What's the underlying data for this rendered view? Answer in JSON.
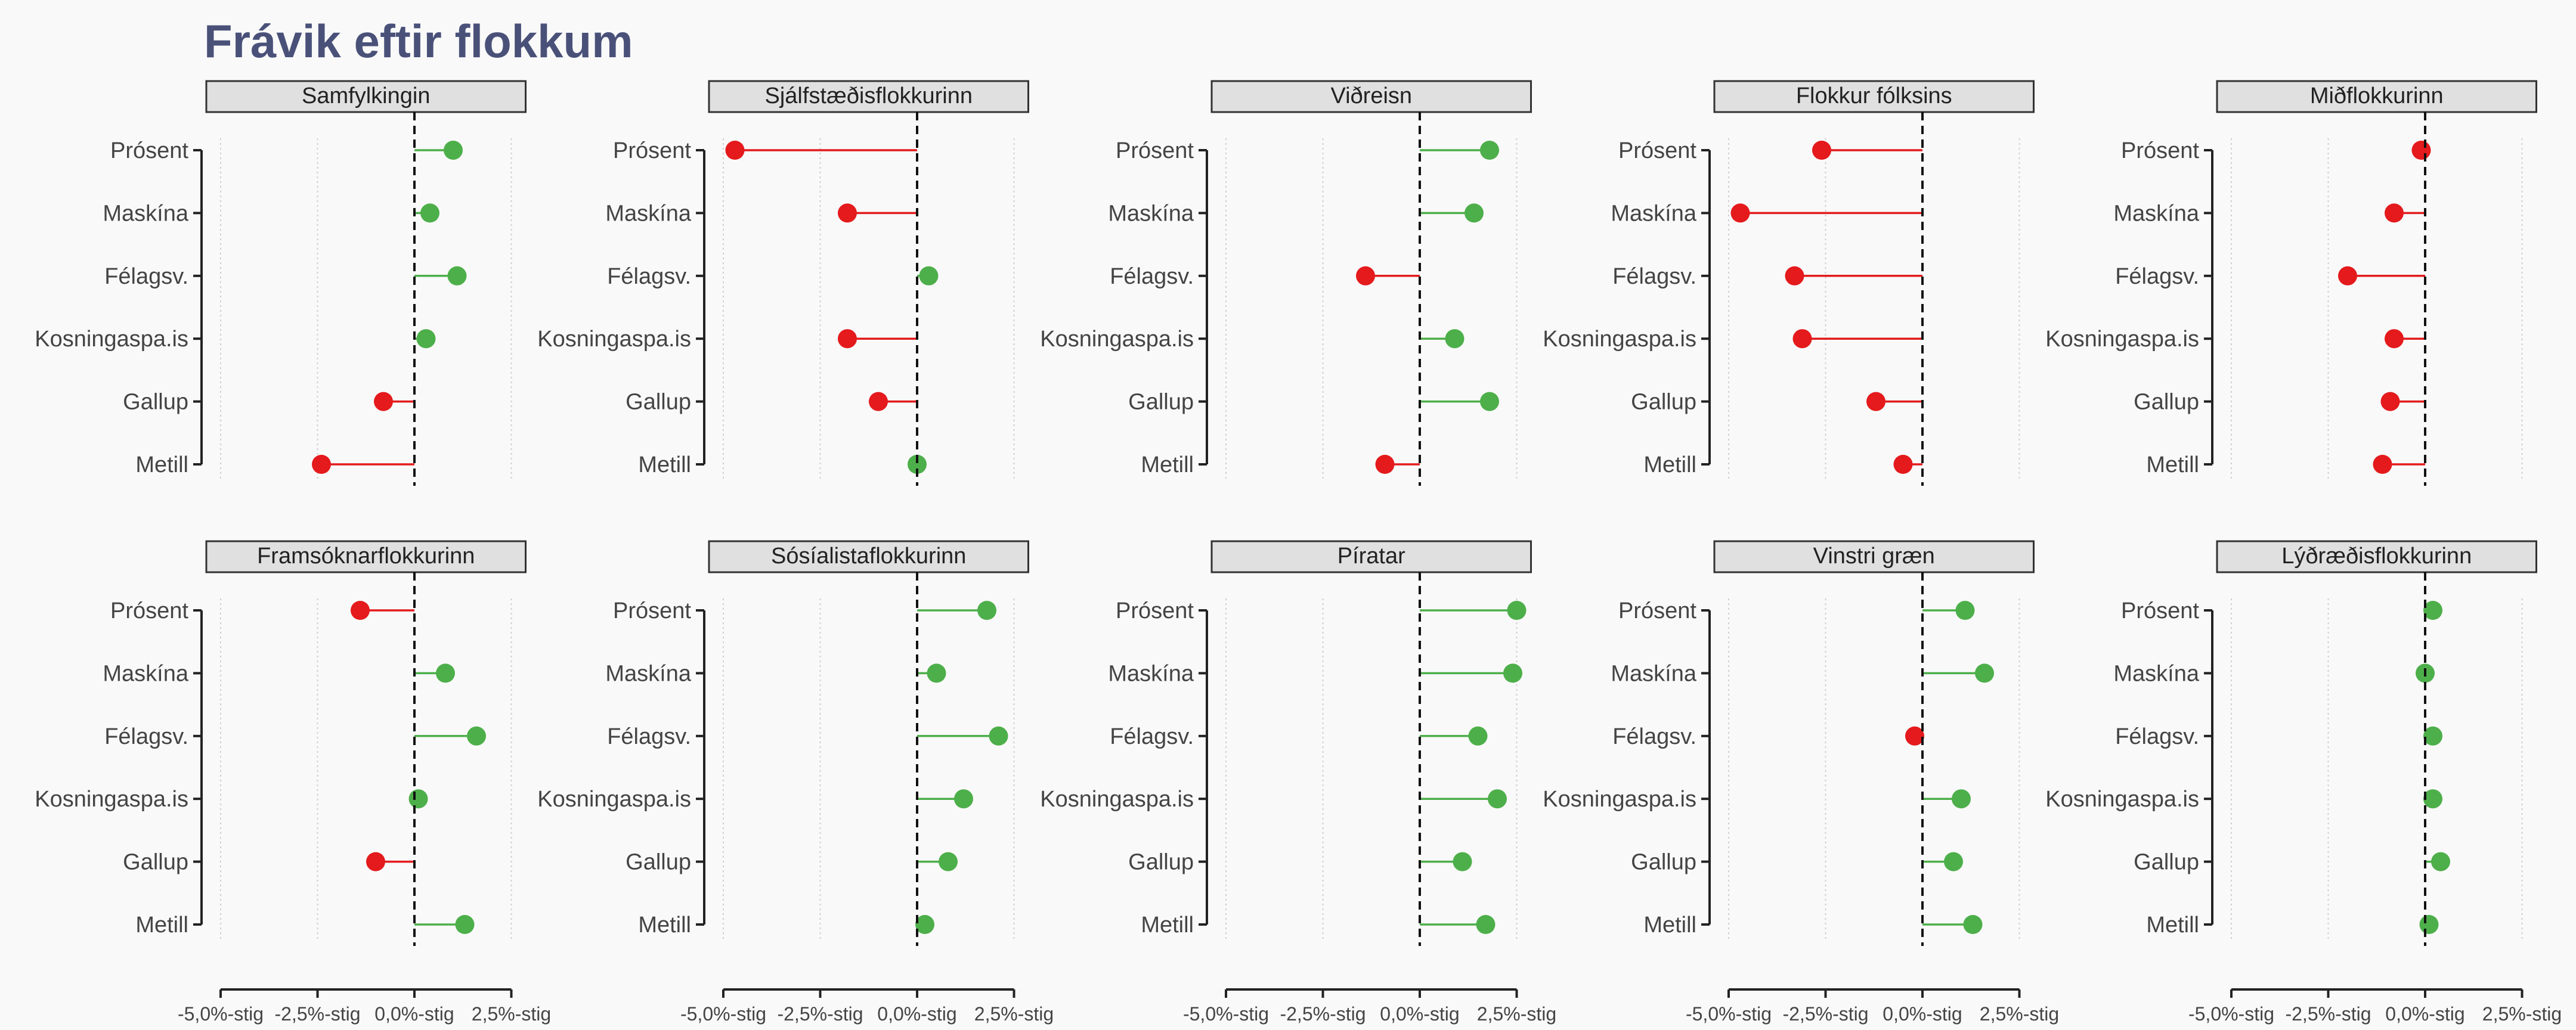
{
  "chart_data": {
    "type": "dot-dumbbell (lollipop) facet grid",
    "title": "Frávik eftir flokkum",
    "xlim": [
      -5.0,
      2.5
    ],
    "xticks": [
      -5.0,
      -2.5,
      0.0,
      2.5
    ],
    "tick_labels": [
      "-5,0%-stig",
      "-2,5%-stig",
      "0,0%-stig",
      "2,5%-stig"
    ],
    "categories": [
      "Prósent",
      "Maskína",
      "Félagsv.",
      "Kosningaspa.is",
      "Gallup",
      "Metill"
    ],
    "grid": "dotted vertical gridlines at ticks, dashed reference line at 0",
    "colors": {
      "positive": "#4daf4a",
      "negative": "#e41a1c",
      "strip_fill": "#e0e0e0"
    },
    "panels": [
      {
        "name": "Samfylkingin",
        "values": [
          1.0,
          0.4,
          1.1,
          0.3,
          -0.8,
          -2.4
        ]
      },
      {
        "name": "Sjálfstæðisflokkurinn",
        "values": [
          -4.7,
          -1.8,
          0.3,
          -1.8,
          -1.0,
          0.0
        ]
      },
      {
        "name": "Viðreisn",
        "values": [
          1.8,
          1.4,
          -1.4,
          0.9,
          1.8,
          -0.9
        ]
      },
      {
        "name": "Flokkur fólksins",
        "values": [
          -2.6,
          -4.7,
          -3.3,
          -3.1,
          -1.2,
          -0.5
        ]
      },
      {
        "name": "Miðflokkurinn",
        "values": [
          -0.1,
          -0.8,
          -2.0,
          -0.8,
          -0.9,
          -1.1
        ]
      },
      {
        "name": "Framsóknarflokkurinn",
        "values": [
          -1.4,
          0.8,
          1.6,
          0.1,
          -1.0,
          1.3
        ]
      },
      {
        "name": "Sósíalistaflokkurinn",
        "values": [
          1.8,
          0.5,
          2.1,
          1.2,
          0.8,
          0.2
        ]
      },
      {
        "name": "Píratar",
        "values": [
          2.5,
          2.4,
          1.5,
          2.0,
          1.1,
          1.7
        ]
      },
      {
        "name": "Vinstri græn",
        "values": [
          1.1,
          1.6,
          -0.2,
          1.0,
          0.8,
          1.3
        ]
      },
      {
        "name": "Lýðræðisflokkurinn",
        "values": [
          0.2,
          0.0,
          0.2,
          0.2,
          0.4,
          0.1
        ]
      }
    ]
  }
}
